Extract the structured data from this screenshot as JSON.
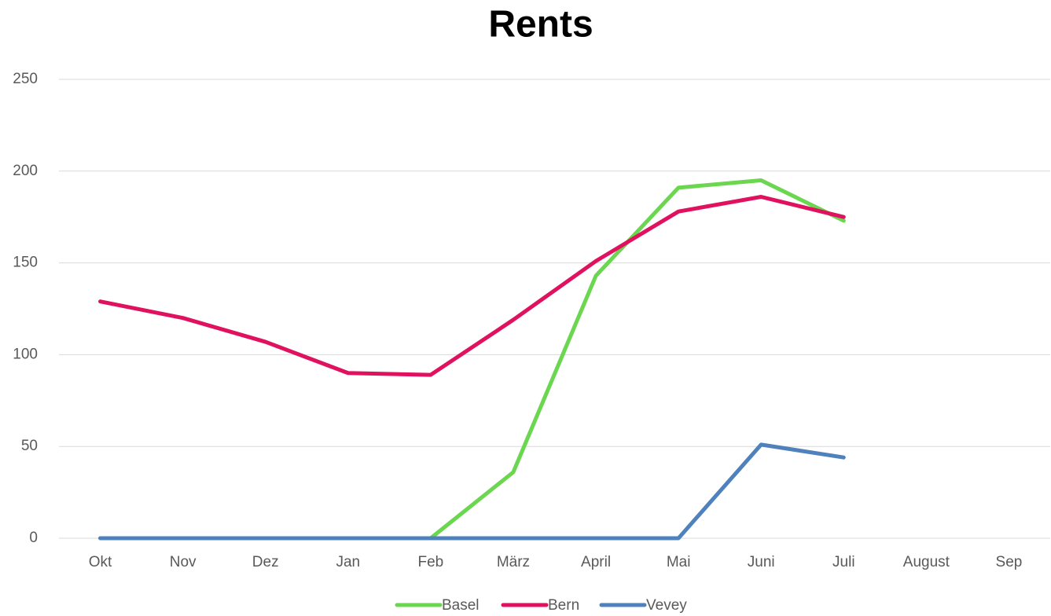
{
  "chart_data": {
    "type": "line",
    "title": "Rents",
    "categories": [
      "Okt",
      "Nov",
      "Dez",
      "Jan",
      "Feb",
      "März",
      "April",
      "Mai",
      "Juni",
      "Juli",
      "August",
      "Sep"
    ],
    "series": [
      {
        "name": "Basel",
        "color": "#6bd64f",
        "values": [
          0,
          0,
          0,
          0,
          0,
          36,
          143,
          191,
          195,
          173,
          null,
          null
        ]
      },
      {
        "name": "Bern",
        "color": "#e0115f",
        "values": [
          129,
          120,
          107,
          90,
          89,
          119,
          151,
          178,
          186,
          175,
          null,
          null
        ]
      },
      {
        "name": "Vevey",
        "color": "#4f81bd",
        "values": [
          0,
          0,
          0,
          0,
          0,
          0,
          0,
          0,
          51,
          44,
          null,
          null
        ]
      }
    ],
    "ylim": [
      0,
      250
    ],
    "yticks": [
      0,
      50,
      100,
      150,
      200,
      250
    ],
    "grid": true,
    "legend": "bottom"
  }
}
